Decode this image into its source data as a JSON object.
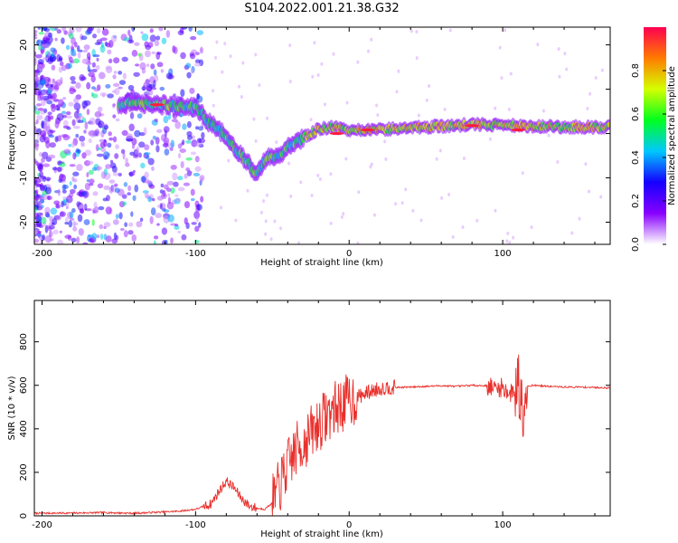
{
  "title": "S104.2022.001.21.38.G32",
  "chart_data": [
    {
      "type": "heatmap",
      "xlabel": "Height of straight line (km)",
      "ylabel": "Frequency (Hz)",
      "xlim": [
        -205,
        170
      ],
      "ylim": [
        -25,
        24
      ],
      "xticks": [
        "-200",
        "-100",
        "0",
        "100"
      ],
      "yticks": [
        "-20",
        "-10",
        "0",
        "10",
        "20"
      ],
      "colorbar": {
        "label": "Normalized spectral amplitude",
        "range": [
          0,
          1
        ],
        "ticks": [
          "0.0",
          "0.2",
          "0.4",
          "0.6",
          "0.8"
        ],
        "colors": [
          "#ffffff",
          "#8800ff",
          "#1500ff",
          "#00c8ff",
          "#00ff20",
          "#d4ff00",
          "#ff7c00",
          "#ff0050"
        ]
      },
      "ridge": {
        "x": [
          -150,
          -140,
          -130,
          -120,
          -110,
          -100,
          -95,
          -90,
          -85,
          -80,
          -75,
          -70,
          -65,
          -60,
          -55,
          -50,
          -45,
          -40,
          -35,
          -30,
          -25,
          -20,
          -10,
          0,
          20,
          50,
          80,
          100,
          120,
          150,
          170
        ],
        "y": [
          6.5,
          7,
          6.5,
          6.5,
          6,
          6,
          4,
          2,
          1,
          -1,
          -3,
          -5,
          -7,
          -9.5,
          -6,
          -5,
          -5,
          -3,
          -2,
          -1,
          0,
          1,
          1.5,
          0.5,
          1,
          1.5,
          2,
          2,
          1.5,
          1.5,
          1.5
        ]
      },
      "grid": false
    },
    {
      "type": "line",
      "xlabel": "Height of straight line (km)",
      "ylabel": "SNR (10 * v/v)",
      "xlim": [
        -205,
        170
      ],
      "ylim": [
        0,
        990
      ],
      "xticks": [
        "-200",
        "-100",
        "0",
        "100"
      ],
      "yticks": [
        "0",
        "200",
        "400",
        "600",
        "800"
      ],
      "series": [
        {
          "color": "#e8302c",
          "x": [
            -205,
            -180,
            -160,
            -140,
            -120,
            -110,
            -100,
            -90,
            -85,
            -80,
            -75,
            -70,
            -65,
            -60,
            -55,
            -50,
            -45,
            -40,
            -35,
            -30,
            -25,
            -20,
            -15,
            -10,
            -5,
            0,
            5,
            10,
            15,
            20,
            25,
            30,
            40,
            50,
            60,
            70,
            80,
            90,
            95,
            100,
            105,
            110,
            112,
            115,
            120,
            130,
            140,
            150,
            160,
            170
          ],
          "y": [
            12,
            13,
            15,
            12,
            18,
            22,
            30,
            55,
            110,
            160,
            130,
            80,
            45,
            35,
            30,
            60,
            140,
            230,
            300,
            330,
            380,
            420,
            460,
            490,
            510,
            530,
            545,
            560,
            575,
            585,
            590,
            590,
            592,
            595,
            598,
            595,
            600,
            598,
            585,
            590,
            560,
            600,
            560,
            595,
            600,
            595,
            592,
            592,
            590,
            588
          ]
        }
      ],
      "grid": false
    }
  ]
}
